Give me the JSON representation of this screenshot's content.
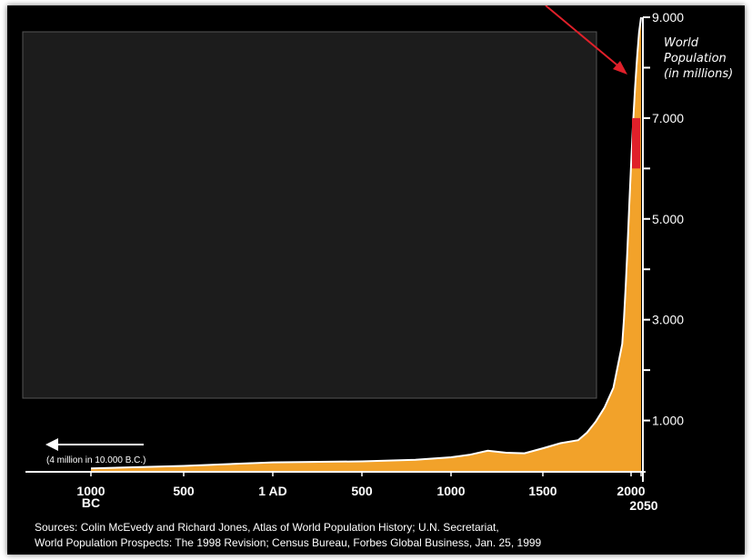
{
  "chart_data": {
    "type": "area",
    "title": "World Population (in millions)",
    "title_lines": [
      "World",
      "Population",
      "(in millions)"
    ],
    "x_tick_labels": [
      {
        "value": -1000,
        "label": "1000",
        "sublabel": "BC"
      },
      {
        "value": -500,
        "label": "500"
      },
      {
        "value": 0,
        "label": "1 AD"
      },
      {
        "value": 500,
        "label": "500"
      },
      {
        "value": 1000,
        "label": "1000"
      },
      {
        "value": 1500,
        "label": "1500"
      },
      {
        "value": 2000,
        "label": "2000",
        "highlight": "#e0202a"
      },
      {
        "value": 2050,
        "label": "2050"
      }
    ],
    "y_ticks": [
      1000,
      2000,
      3000,
      4000,
      5000,
      6000,
      7000,
      8000,
      9000
    ],
    "y_tick_labels": [
      {
        "value": 1000,
        "label": "1.000"
      },
      {
        "value": 3000,
        "label": "3.000"
      },
      {
        "value": 5000,
        "label": "5.000"
      },
      {
        "value": 7000,
        "label": "7.000"
      },
      {
        "value": 9000,
        "label": "9.000"
      }
    ],
    "xlim": [
      -1000,
      2050
    ],
    "ylim": [
      0,
      9000
    ],
    "series": [
      {
        "x": [
          -1000,
          -500,
          0,
          500,
          800,
          1000,
          1100,
          1200,
          1300,
          1400,
          1500,
          1600,
          1700,
          1750,
          1800,
          1850,
          1900,
          1950,
          1960,
          1970,
          1980,
          1990,
          2000,
          2010,
          2020,
          2030,
          2040,
          2050
        ],
        "values": [
          50,
          100,
          170,
          190,
          220,
          270,
          320,
          400,
          360,
          350,
          450,
          550,
          610,
          760,
          980,
          1260,
          1650,
          2520,
          3020,
          3700,
          4440,
          5300,
          6070,
          6900,
          7600,
          8200,
          8700,
          9000
        ]
      }
    ],
    "highlight_band": {
      "x_start": 2000,
      "x_end": 2050,
      "y_start": 6000,
      "y_end": 7000,
      "color": "#e0202a"
    },
    "annotation": "(4 million in 10.000 B.C.)",
    "grid": false,
    "fill_color": "#f2a22a",
    "line_color": "#ffffff",
    "arrow_color": "#e0202a",
    "sources_lines": [
      "Sources: Colin McEvedy and Richard Jones, Atlas of World Population History; U.N. Secretariat,",
      "World Population Prospects: The 1998 Revision; Census Bureau, Forbes Global Business, Jan. 25, 1999"
    ]
  },
  "overlay_panel": {
    "color": "#1c1c1c",
    "border": "#555555"
  }
}
